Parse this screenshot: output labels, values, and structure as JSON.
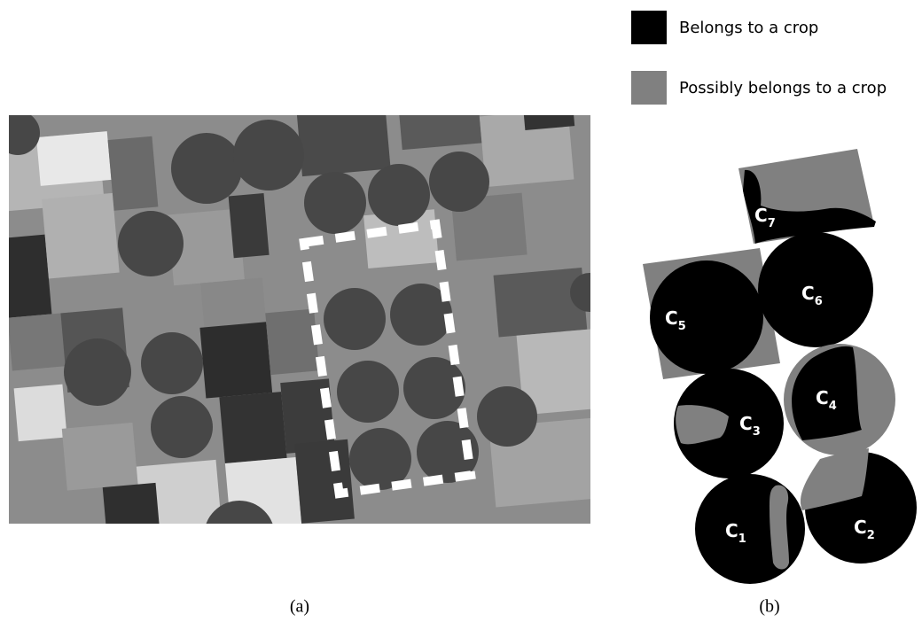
{
  "legend": [
    {
      "label": "Belongs to a crop",
      "color": "#000000"
    },
    {
      "label": "Possibly belongs to a crop",
      "color": "#808080"
    }
  ],
  "regions": [
    {
      "letter": "C",
      "sub": "1"
    },
    {
      "letter": "C",
      "sub": "2"
    },
    {
      "letter": "C",
      "sub": "3"
    },
    {
      "letter": "C",
      "sub": "4"
    },
    {
      "letter": "C",
      "sub": "5"
    },
    {
      "letter": "C",
      "sub": "6"
    },
    {
      "letter": "C",
      "sub": "7"
    }
  ],
  "captions": [
    "(a)",
    "(b)"
  ]
}
